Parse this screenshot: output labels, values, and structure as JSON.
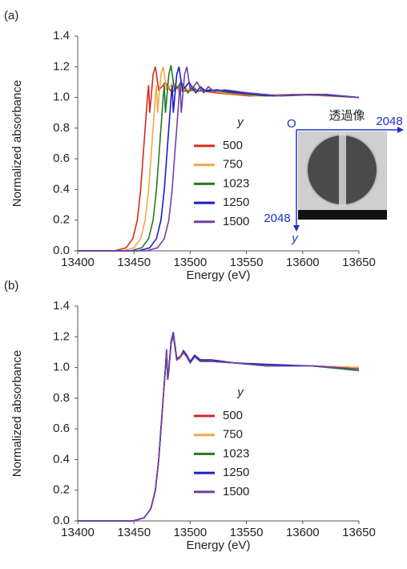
{
  "chart_data": [
    {
      "type": "line",
      "panel_label": "(a)",
      "x_label": "Energy (eV)",
      "y_label": "Normalized absorbance",
      "legend_title": "y",
      "xlim": [
        13400,
        13650
      ],
      "xticks": [
        13400,
        13450,
        13500,
        13550,
        13600,
        13650
      ],
      "ylim": [
        0,
        1.4
      ],
      "yticks": [
        {
          "value": 0,
          "label": "0.0"
        },
        0.2,
        0.4,
        0.6,
        0.8,
        {
          "value": 1,
          "label": "1.0"
        },
        1.2,
        1.4
      ],
      "inset": {
        "title": "透過像",
        "origin": "O",
        "x_extent": "2048",
        "y_extent": "2048",
        "y_axis": "y"
      },
      "series": [
        {
          "name": "500",
          "color": "#d42a1e",
          "x": [
            13400,
            13433,
            13443,
            13449,
            13453,
            13456,
            13458,
            13460,
            13462,
            13463,
            13464,
            13465,
            13467,
            13469,
            13472,
            13475,
            13478,
            13481,
            13484,
            13488,
            13493,
            13503,
            13523,
            13553,
            13593,
            13650
          ],
          "values": [
            0.0,
            0.0,
            0.02,
            0.08,
            0.2,
            0.4,
            0.6,
            0.8,
            1.0,
            1.08,
            0.9,
            0.98,
            1.15,
            1.2,
            1.05,
            1.07,
            1.1,
            1.06,
            1.03,
            1.07,
            1.04,
            1.05,
            1.03,
            1.01,
            1.02,
            1.0
          ]
        },
        {
          "name": "750",
          "color": "#f2a54e",
          "x": [
            13400,
            13440,
            13450,
            13456,
            13460,
            13463,
            13465,
            13467,
            13469,
            13470,
            13471,
            13472,
            13474,
            13476,
            13479,
            13482,
            13485,
            13488,
            13491,
            13495,
            13500,
            13510,
            13530,
            13560,
            13600,
            13650
          ],
          "values": [
            0.0,
            0.0,
            0.02,
            0.08,
            0.2,
            0.4,
            0.6,
            0.8,
            1.0,
            1.08,
            0.9,
            0.98,
            1.15,
            1.2,
            1.05,
            1.07,
            1.1,
            1.06,
            1.03,
            1.07,
            1.04,
            1.05,
            1.03,
            1.01,
            1.02,
            1.0
          ]
        },
        {
          "name": "1023",
          "color": "#217a21",
          "x": [
            13400,
            13447,
            13457,
            13463,
            13467,
            13470,
            13472,
            13474,
            13476,
            13477,
            13478,
            13479,
            13481,
            13483,
            13486,
            13489,
            13492,
            13495,
            13498,
            13502,
            13507,
            13517,
            13537,
            13567,
            13607,
            13650
          ],
          "values": [
            0.0,
            0.0,
            0.02,
            0.08,
            0.2,
            0.4,
            0.6,
            0.8,
            1.0,
            1.08,
            0.9,
            0.98,
            1.15,
            1.21,
            1.05,
            1.07,
            1.1,
            1.06,
            1.03,
            1.07,
            1.04,
            1.05,
            1.03,
            1.01,
            1.02,
            1.0
          ]
        },
        {
          "name": "1250",
          "color": "#1c1cc4",
          "x": [
            13400,
            13454,
            13464,
            13470,
            13474,
            13477,
            13479,
            13481,
            13483,
            13484,
            13485,
            13486,
            13488,
            13490,
            13493,
            13496,
            13499,
            13502,
            13505,
            13509,
            13514,
            13524,
            13544,
            13574,
            13614,
            13650
          ],
          "values": [
            0.0,
            0.0,
            0.02,
            0.08,
            0.2,
            0.4,
            0.6,
            0.8,
            1.0,
            1.08,
            0.9,
            0.98,
            1.15,
            1.2,
            1.05,
            1.07,
            1.1,
            1.06,
            1.03,
            1.07,
            1.04,
            1.05,
            1.03,
            1.01,
            1.02,
            1.0
          ]
        },
        {
          "name": "1500",
          "color": "#7040a8",
          "x": [
            13400,
            13461,
            13471,
            13477,
            13481,
            13484,
            13486,
            13488,
            13490,
            13491,
            13492,
            13493,
            13495,
            13497,
            13500,
            13503,
            13506,
            13509,
            13512,
            13516,
            13521,
            13531,
            13551,
            13581,
            13621,
            13650
          ],
          "values": [
            0.0,
            0.0,
            0.02,
            0.08,
            0.2,
            0.4,
            0.6,
            0.8,
            1.0,
            1.1,
            0.9,
            0.98,
            1.15,
            1.2,
            1.05,
            1.07,
            1.1,
            1.06,
            1.03,
            1.07,
            1.04,
            1.05,
            1.03,
            1.01,
            1.02,
            1.0
          ]
        }
      ]
    },
    {
      "type": "line",
      "panel_label": "(b)",
      "x_label": "Energy (eV)",
      "y_label": "Normalized absorbance",
      "legend_title": "y",
      "xlim": [
        13400,
        13650
      ],
      "xticks": [
        13400,
        13450,
        13500,
        13550,
        13600,
        13650
      ],
      "ylim": [
        0,
        1.4
      ],
      "yticks": [
        {
          "value": 0,
          "label": "0.0"
        },
        0.2,
        0.4,
        0.6,
        0.8,
        {
          "value": 1,
          "label": "1.0"
        },
        1.2,
        1.4
      ],
      "x": [
        13400,
        13449,
        13459,
        13465,
        13469,
        13472,
        13474,
        13476,
        13478,
        13479,
        13480,
        13481,
        13483,
        13485,
        13488,
        13491,
        13494,
        13497,
        13500,
        13504,
        13509,
        13519,
        13539,
        13569,
        13609,
        13650
      ],
      "series": [
        {
          "name": "500",
          "color": "#d42a1e",
          "values": [
            0.0,
            0.0,
            0.02,
            0.08,
            0.2,
            0.4,
            0.6,
            0.8,
            1.0,
            1.1,
            0.92,
            0.98,
            1.15,
            1.21,
            1.05,
            1.06,
            1.1,
            1.07,
            1.03,
            1.07,
            1.04,
            1.04,
            1.03,
            1.01,
            1.01,
            1.0
          ]
        },
        {
          "name": "750",
          "color": "#f2a54e",
          "values": [
            0.0,
            0.0,
            0.02,
            0.08,
            0.2,
            0.4,
            0.6,
            0.8,
            1.0,
            1.1,
            0.93,
            0.98,
            1.15,
            1.2,
            1.05,
            1.06,
            1.09,
            1.07,
            1.03,
            1.07,
            1.04,
            1.04,
            1.03,
            1.01,
            1.01,
            1.0
          ]
        },
        {
          "name": "1023",
          "color": "#217a21",
          "values": [
            0.0,
            0.0,
            0.02,
            0.08,
            0.2,
            0.4,
            0.6,
            0.8,
            1.0,
            1.1,
            0.92,
            0.98,
            1.16,
            1.21,
            1.05,
            1.07,
            1.1,
            1.07,
            1.03,
            1.07,
            1.05,
            1.04,
            1.03,
            1.01,
            1.01,
            0.98
          ]
        },
        {
          "name": "1250",
          "color": "#1c1cc4",
          "values": [
            0.0,
            0.0,
            0.02,
            0.08,
            0.2,
            0.4,
            0.6,
            0.8,
            1.0,
            1.11,
            0.93,
            0.99,
            1.17,
            1.23,
            1.06,
            1.07,
            1.11,
            1.08,
            1.04,
            1.08,
            1.05,
            1.05,
            1.03,
            1.02,
            1.01,
            0.99
          ]
        },
        {
          "name": "1500",
          "color": "#7040a8",
          "values": [
            0.0,
            0.0,
            0.02,
            0.08,
            0.2,
            0.4,
            0.6,
            0.8,
            1.0,
            1.12,
            0.92,
            0.98,
            1.16,
            1.22,
            1.05,
            1.07,
            1.1,
            1.07,
            1.03,
            1.07,
            1.04,
            1.04,
            1.03,
            1.01,
            1.01,
            0.99
          ]
        }
      ]
    }
  ]
}
